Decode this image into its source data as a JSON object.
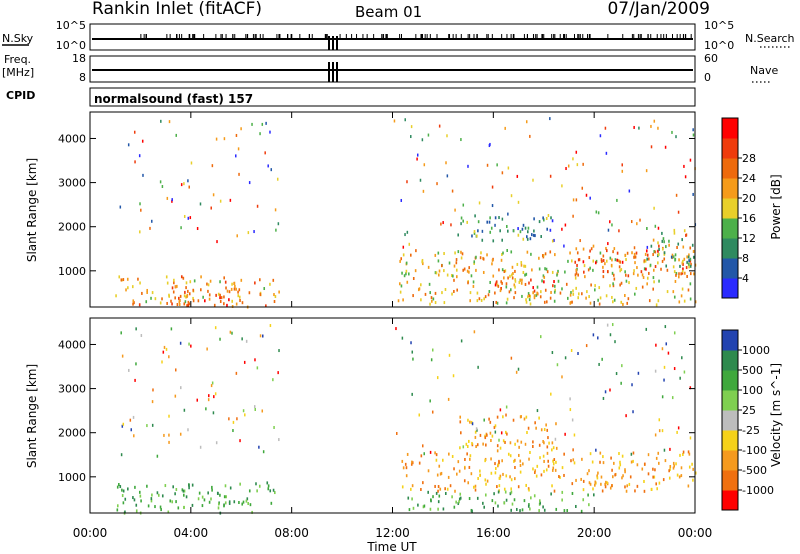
{
  "header": {
    "station": "Rankin Inlet (fitACF)",
    "beam": "Beam 01",
    "date": "07/Jan/2009"
  },
  "small_panels": {
    "nsky_label": "N.Sky",
    "nsky_ticks": [
      "10^5",
      "10^0"
    ],
    "nsearch_label": "N.Search",
    "nsearch_ticks": [
      "10^5",
      "10^0"
    ],
    "freq_label_line1": "Freq.",
    "freq_label_line2": "[MHz]",
    "freq_ticks": [
      "18",
      "8"
    ],
    "nave_label": "Nave",
    "nave_ticks": [
      "60",
      "0"
    ],
    "cpid_label": "CPID",
    "cpid_text": "normalsound (fast) 157"
  },
  "colors": {
    "power": [
      "#2a2aff",
      "#2257a8",
      "#2f8a60",
      "#4db04a",
      "#e8cf2a",
      "#f59b1a",
      "#ee6a0c",
      "#ef3b0c",
      "#ff0000"
    ],
    "velocity": [
      "#2243b0",
      "#2e8a4e",
      "#3fa83c",
      "#7fcf50",
      "#bdbdbd",
      "#f5d21a",
      "#f59a1e",
      "#f07010",
      "#ff0000"
    ]
  },
  "chart_data": [
    {
      "type": "heatmap",
      "title": "Power",
      "xlabel": "Time UT",
      "ylabel": "Slant Range [km]",
      "x_ticks": [
        "00:00",
        "04:00",
        "08:00",
        "12:00",
        "16:00",
        "20:00",
        "00:00"
      ],
      "xlim_hours": [
        0,
        24
      ],
      "y_ticks": [
        1000,
        2000,
        3000,
        4000
      ],
      "ylim": [
        180,
        4600
      ],
      "colorbar": {
        "label": "Power [dB]",
        "ticks": [
          4,
          8,
          12,
          16,
          20,
          24,
          28
        ],
        "range": [
          0,
          32
        ]
      },
      "regions": [
        {
          "t0": 1.0,
          "t1": 7.5,
          "r0": 200,
          "r1": 900,
          "value": 22
        },
        {
          "t0": 3.2,
          "t1": 6.2,
          "r0": 250,
          "r1": 650,
          "value": 29
        },
        {
          "t0": 12.2,
          "t1": 24.0,
          "r0": 250,
          "r1": 1500,
          "value": 20
        },
        {
          "t0": 16.0,
          "t1": 18.5,
          "r0": 500,
          "r1": 900,
          "value": 28
        },
        {
          "t0": 19.2,
          "t1": 24.0,
          "r0": 900,
          "r1": 1600,
          "value": 28
        },
        {
          "t0": 14.5,
          "t1": 18.5,
          "r0": 1700,
          "r1": 2300,
          "value": 10
        },
        {
          "t0": 22.0,
          "t1": 24.0,
          "r0": 1000,
          "r1": 2000,
          "value": 14
        }
      ]
    },
    {
      "type": "heatmap",
      "title": "Velocity",
      "xlabel": "Time UT",
      "ylabel": "Slant Range [km]",
      "x_ticks": [
        "00:00",
        "04:00",
        "08:00",
        "12:00",
        "16:00",
        "20:00",
        "00:00"
      ],
      "xlim_hours": [
        0,
        24
      ],
      "y_ticks": [
        1000,
        2000,
        3000,
        4000
      ],
      "ylim": [
        180,
        4600
      ],
      "colorbar": {
        "label": "Velocity [m s^-1]",
        "ticks": [
          "1000",
          "500",
          "100",
          "25",
          "-25",
          "-100",
          "-500",
          "-1000"
        ]
      },
      "regions": [
        {
          "t0": 1.0,
          "t1": 7.5,
          "r0": 200,
          "r1": 900,
          "value": 100
        },
        {
          "t0": 12.2,
          "t1": 24.0,
          "r0": 700,
          "r1": 1600,
          "value": -300
        },
        {
          "t0": 14.5,
          "t1": 18.5,
          "r0": 1600,
          "r1": 2400,
          "value": -300
        },
        {
          "t0": 12.5,
          "t1": 20.0,
          "r0": 250,
          "r1": 700,
          "value": 100
        }
      ]
    }
  ]
}
